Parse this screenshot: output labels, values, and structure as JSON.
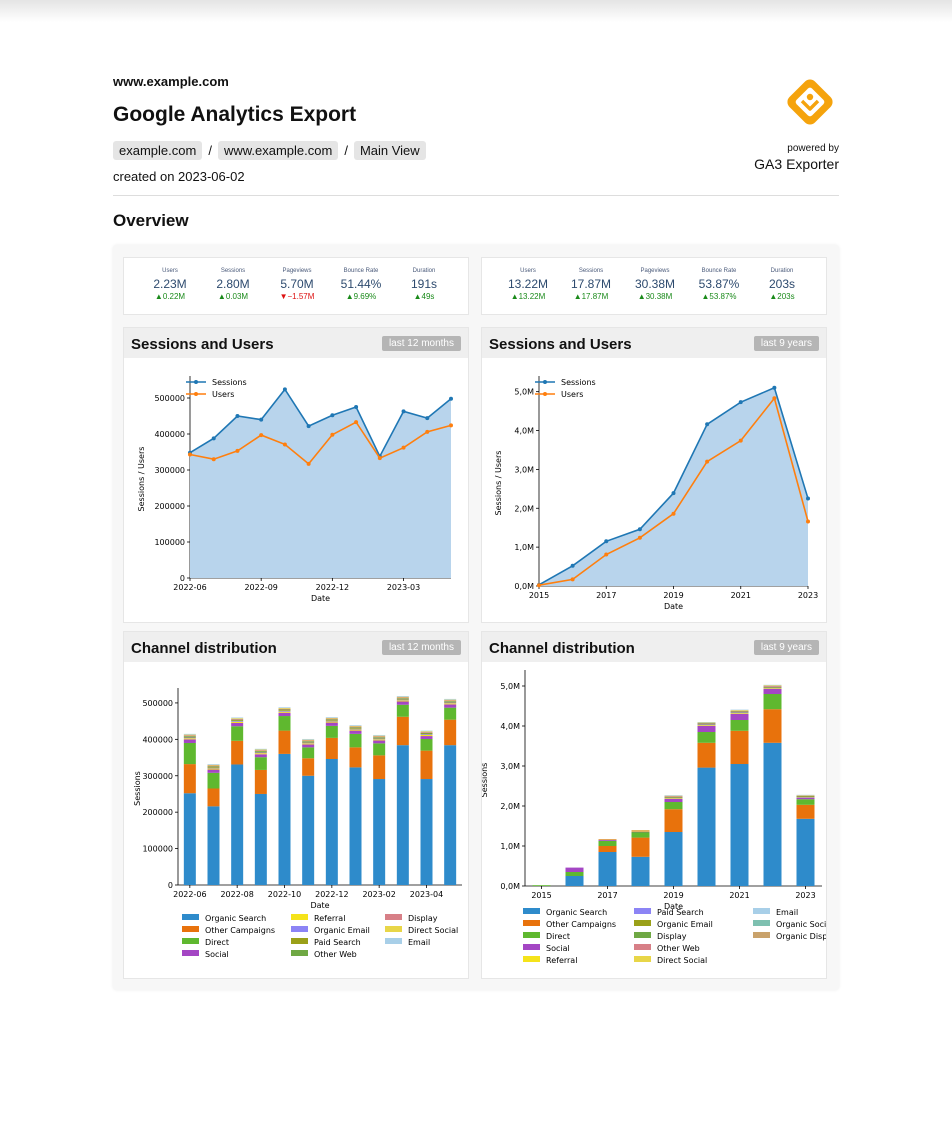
{
  "header": {
    "site": "www.example.com",
    "title": "Google Analytics Export",
    "breadcrumb": [
      "example.com",
      "www.example.com",
      "Main View"
    ],
    "separator": "/",
    "created": "created on 2023-06-02",
    "powered_by": "powered by",
    "exporter": "GA3 Exporter"
  },
  "overview_title": "Overview",
  "colors": {
    "accent": "#f5a30c",
    "sessions": "#1f77b4",
    "users": "#ff7f0e",
    "area": "#b8d4ec",
    "up": "#1a8a1a",
    "down": "#dd1111"
  },
  "kpis_12m": [
    {
      "label": "Users",
      "value": "2.23M",
      "delta": "▲0.22M",
      "dir": "up"
    },
    {
      "label": "Sessions",
      "value": "2.80M",
      "delta": "▲0.03M",
      "dir": "up"
    },
    {
      "label": "Pageviews",
      "value": "5.70M",
      "delta": "▼−1.57M",
      "dir": "down"
    },
    {
      "label": "Bounce Rate",
      "value": "51.44%",
      "delta": "▲9.69%",
      "dir": "up"
    },
    {
      "label": "Duration",
      "value": "191s",
      "delta": "▲49s",
      "dir": "up"
    }
  ],
  "kpis_9y": [
    {
      "label": "Users",
      "value": "13.22M",
      "delta": "▲13.22M",
      "dir": "up"
    },
    {
      "label": "Sessions",
      "value": "17.87M",
      "delta": "▲17.87M",
      "dir": "up"
    },
    {
      "label": "Pageviews",
      "value": "30.38M",
      "delta": "▲30.38M",
      "dir": "up"
    },
    {
      "label": "Bounce Rate",
      "value": "53.87%",
      "delta": "▲53.87%",
      "dir": "up"
    },
    {
      "label": "Duration",
      "value": "203s",
      "delta": "▲203s",
      "dir": "up"
    }
  ],
  "panels": {
    "su12": {
      "title": "Sessions and Users",
      "badge": "last 12 months"
    },
    "su9": {
      "title": "Sessions and Users",
      "badge": "last 9 years"
    },
    "cd12": {
      "title": "Channel distribution",
      "badge": "last 12 months"
    },
    "cd9": {
      "title": "Channel distribution",
      "badge": "last 9 years"
    }
  },
  "chart_data": [
    {
      "id": "su12",
      "type": "line",
      "xlabel": "Date",
      "ylabel": "Sessions / Users",
      "ylim": [
        0,
        550000
      ],
      "x": [
        "2022-06",
        "2022-07",
        "2022-08",
        "2022-09",
        "2022-10",
        "2022-11",
        "2022-12",
        "2023-01",
        "2023-02",
        "2023-03",
        "2023-04",
        "2023-05"
      ],
      "yticks": [
        0,
        100000,
        200000,
        300000,
        400000,
        500000
      ],
      "ytick_labels": [
        "0",
        "100000",
        "200000",
        "300000",
        "400000",
        "500000"
      ],
      "xtick_labels": [
        "2022-06",
        "2022-09",
        "2022-12",
        "2023-03"
      ],
      "xtick_index": [
        0,
        3,
        6,
        9
      ],
      "legend": "top-left",
      "series": [
        {
          "name": "Sessions",
          "values": [
            348000,
            388000,
            450000,
            440000,
            524000,
            422000,
            452000,
            475000,
            338000,
            463000,
            444000,
            498000
          ]
        },
        {
          "name": "Users",
          "values": [
            343000,
            330000,
            353000,
            397000,
            371000,
            317000,
            398000,
            433000,
            333000,
            362000,
            406000,
            424000
          ]
        }
      ]
    },
    {
      "id": "su9",
      "type": "line",
      "xlabel": "Date",
      "ylabel": "Sessions / Users",
      "ylim": [
        0,
        5300000
      ],
      "x": [
        "2015",
        "2016",
        "2017",
        "2018",
        "2019",
        "2020",
        "2021",
        "2022",
        "2023"
      ],
      "yticks": [
        0,
        1000000,
        2000000,
        3000000,
        4000000,
        5000000
      ],
      "ytick_labels": [
        "0,0M",
        "1,0M",
        "2,0M",
        "3,0M",
        "4,0M",
        "5,0M"
      ],
      "xtick_labels": [
        "2015",
        "2017",
        "2019",
        "2021",
        "2023"
      ],
      "xtick_index": [
        0,
        2,
        4,
        6,
        8
      ],
      "legend": "top-left",
      "series": [
        {
          "name": "Sessions",
          "values": [
            30000,
            520000,
            1150000,
            1460000,
            2390000,
            4160000,
            4730000,
            5100000,
            2250000
          ]
        },
        {
          "name": "Users",
          "values": [
            20000,
            170000,
            810000,
            1240000,
            1860000,
            3200000,
            3740000,
            4830000,
            1660000
          ]
        }
      ]
    },
    {
      "id": "cd12",
      "type": "bar",
      "stacked": true,
      "xlabel": "Date",
      "ylabel": "Sessions",
      "ylim": [
        0,
        530000
      ],
      "categories": [
        "2022-06",
        "2022-07",
        "2022-08",
        "2022-09",
        "2022-10",
        "2022-11",
        "2022-12",
        "2023-01",
        "2023-02",
        "2023-03",
        "2023-04",
        "2023-05"
      ],
      "yticks": [
        0,
        100000,
        200000,
        300000,
        400000,
        500000
      ],
      "ytick_labels": [
        "0",
        "100000",
        "200000",
        "300000",
        "400000",
        "500000"
      ],
      "xtick_labels": [
        "2022-06",
        "2022-08",
        "2022-10",
        "2022-12",
        "2023-02",
        "2023-04"
      ],
      "xtick_index": [
        0,
        2,
        4,
        6,
        8,
        10
      ],
      "legend_cols": 3,
      "series": [
        {
          "name": "Organic Search",
          "color": "#2e8bcb",
          "values": [
            252000,
            216000,
            331000,
            250000,
            360000,
            300000,
            346000,
            323000,
            291000,
            384000,
            291000,
            384000
          ]
        },
        {
          "name": "Other Campaigns",
          "color": "#e8720c",
          "values": [
            80000,
            49000,
            65000,
            66000,
            64000,
            48000,
            58000,
            55000,
            65000,
            78000,
            78000,
            70000
          ]
        },
        {
          "name": "Direct",
          "color": "#5fb82f",
          "values": [
            58000,
            43000,
            40000,
            35000,
            40000,
            30000,
            33000,
            37000,
            33000,
            33000,
            32000,
            33000
          ]
        },
        {
          "name": "Social",
          "color": "#a446c4",
          "values": [
            10000,
            9000,
            9000,
            8000,
            9000,
            8000,
            9000,
            9000,
            8000,
            9000,
            8000,
            9000
          ]
        },
        {
          "name": "Referral",
          "color": "#f5e31a",
          "values": [
            3000,
            3000,
            3000,
            3000,
            3000,
            3000,
            3000,
            3000,
            3000,
            3000,
            3000,
            3000
          ]
        },
        {
          "name": "Organic Email",
          "color": "#8c84f5",
          "values": [
            2000,
            2000,
            2000,
            2000,
            2000,
            2000,
            2000,
            2000,
            2000,
            2000,
            2000,
            2000
          ]
        },
        {
          "name": "Paid Search",
          "color": "#9aa019",
          "values": [
            2000,
            2000,
            2000,
            2000,
            2000,
            2000,
            2000,
            2000,
            2000,
            2000,
            2000,
            2000
          ]
        },
        {
          "name": "Other Web",
          "color": "#6fa844",
          "values": [
            2000,
            2000,
            2000,
            2000,
            2000,
            2000,
            2000,
            2000,
            2000,
            2000,
            2000,
            2000
          ]
        },
        {
          "name": "Display",
          "color": "#d77f87",
          "values": [
            2000,
            2000,
            2000,
            2000,
            2000,
            2000,
            2000,
            2000,
            2000,
            2000,
            2000,
            2000
          ]
        },
        {
          "name": "Direct Social",
          "color": "#e8d648",
          "values": [
            2000,
            2000,
            2000,
            2000,
            2000,
            2000,
            2000,
            2000,
            2000,
            2000,
            2000,
            2000
          ]
        },
        {
          "name": "Email",
          "color": "#a8cfe8",
          "values": [
            2000,
            2000,
            2000,
            2000,
            2000,
            2000,
            2000,
            2000,
            2000,
            2000,
            2000,
            2000
          ]
        }
      ]
    },
    {
      "id": "cd9",
      "type": "bar",
      "stacked": true,
      "xlabel": "Date",
      "ylabel": "Sessions",
      "ylim": [
        0,
        5300000
      ],
      "categories": [
        "2015",
        "2016",
        "2017",
        "2018",
        "2019",
        "2020",
        "2021",
        "2022",
        "2023"
      ],
      "yticks": [
        0,
        1000000,
        2000000,
        3000000,
        4000000,
        5000000
      ],
      "ytick_labels": [
        "0,0M",
        "1,0M",
        "2,0M",
        "3,0M",
        "4,0M",
        "5,0M"
      ],
      "xtick_labels": [
        "2015",
        "2017",
        "2019",
        "2021",
        "2023"
      ],
      "xtick_index": [
        0,
        2,
        4,
        6,
        8
      ],
      "legend_cols": 3,
      "series": [
        {
          "name": "Organic Search",
          "color": "#2e8bcb",
          "values": [
            0,
            250000,
            850000,
            730000,
            1350000,
            2960000,
            3050000,
            3580000,
            1680000
          ]
        },
        {
          "name": "Other Campaigns",
          "color": "#e8720c",
          "values": [
            0,
            0,
            150000,
            480000,
            570000,
            620000,
            830000,
            840000,
            350000
          ]
        },
        {
          "name": "Direct",
          "color": "#5fb82f",
          "values": [
            20000,
            100000,
            130000,
            140000,
            180000,
            270000,
            270000,
            380000,
            140000
          ]
        },
        {
          "name": "Social",
          "color": "#a446c4",
          "values": [
            0,
            110000,
            30000,
            10000,
            80000,
            150000,
            150000,
            130000,
            40000
          ]
        },
        {
          "name": "Referral",
          "color": "#f5e31a",
          "values": [
            0,
            0,
            5000,
            20000,
            20000,
            20000,
            20000,
            20000,
            10000
          ]
        },
        {
          "name": "Paid Search",
          "color": "#8c84f5",
          "values": [
            0,
            0,
            0,
            0,
            10000,
            20000,
            20000,
            10000,
            10000
          ]
        },
        {
          "name": "Organic Email",
          "color": "#9aa019",
          "values": [
            0,
            0,
            0,
            0,
            10000,
            20000,
            20000,
            10000,
            10000
          ]
        },
        {
          "name": "Display",
          "color": "#6fa844",
          "values": [
            0,
            0,
            0,
            0,
            10000,
            10000,
            10000,
            10000,
            10000
          ]
        },
        {
          "name": "Other Web",
          "color": "#d77f87",
          "values": [
            0,
            0,
            10000,
            10000,
            20000,
            10000,
            10000,
            20000,
            10000
          ]
        },
        {
          "name": "Direct Social",
          "color": "#e8d648",
          "values": [
            0,
            0,
            0,
            10000,
            10000,
            10000,
            20000,
            20000,
            10000
          ]
        },
        {
          "name": "Email",
          "color": "#a8cfe8",
          "values": [
            0,
            0,
            0,
            0,
            10000,
            10000,
            10000,
            10000,
            10000
          ]
        },
        {
          "name": "Organic Social",
          "color": "#7ec0b0",
          "values": [
            0,
            0,
            0,
            0,
            0,
            0,
            0,
            0,
            0
          ]
        },
        {
          "name": "Organic Display",
          "color": "#c9a26b",
          "values": [
            0,
            0,
            0,
            0,
            0,
            0,
            0,
            0,
            0
          ]
        }
      ]
    }
  ]
}
